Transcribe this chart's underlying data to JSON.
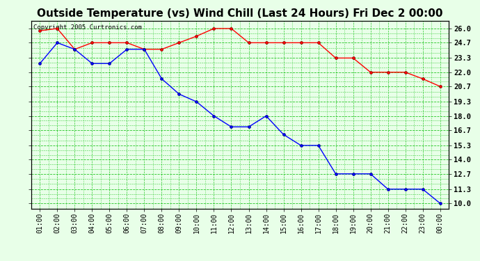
{
  "title": "Outside Temperature (vs) Wind Chill (Last 24 Hours) Fri Dec 2 00:00",
  "copyright": "Copyright 2005 Curtronics.com",
  "x_labels": [
    "01:00",
    "02:00",
    "03:00",
    "04:00",
    "05:00",
    "06:00",
    "07:00",
    "08:00",
    "09:00",
    "10:00",
    "11:00",
    "12:00",
    "13:00",
    "14:00",
    "15:00",
    "16:00",
    "17:00",
    "18:00",
    "19:00",
    "20:00",
    "21:00",
    "22:00",
    "23:00",
    "00:00"
  ],
  "red_data": [
    25.8,
    26.0,
    24.1,
    24.7,
    24.7,
    24.7,
    24.1,
    24.1,
    24.7,
    25.3,
    26.0,
    26.0,
    24.7,
    24.7,
    24.7,
    24.7,
    24.7,
    23.3,
    23.3,
    22.0,
    22.0,
    22.0,
    21.4,
    20.7
  ],
  "blue_data": [
    22.8,
    24.7,
    24.1,
    22.8,
    22.8,
    24.1,
    24.1,
    21.4,
    20.0,
    19.3,
    18.0,
    17.0,
    17.0,
    18.0,
    16.3,
    15.3,
    15.3,
    12.7,
    12.7,
    12.7,
    11.3,
    11.3,
    11.3,
    10.0
  ],
  "y_ticks": [
    10.0,
    11.3,
    12.7,
    14.0,
    15.3,
    16.7,
    18.0,
    19.3,
    20.7,
    22.0,
    23.3,
    24.7,
    26.0
  ],
  "ylim": [
    9.5,
    26.7
  ],
  "bg_color": "#e8ffe8",
  "grid_color": "#00bb00",
  "red_color": "#ff0000",
  "blue_color": "#0000ff",
  "title_fontsize": 11,
  "copyright_fontsize": 6.5,
  "tick_fontsize": 7.5,
  "xtick_fontsize": 7
}
